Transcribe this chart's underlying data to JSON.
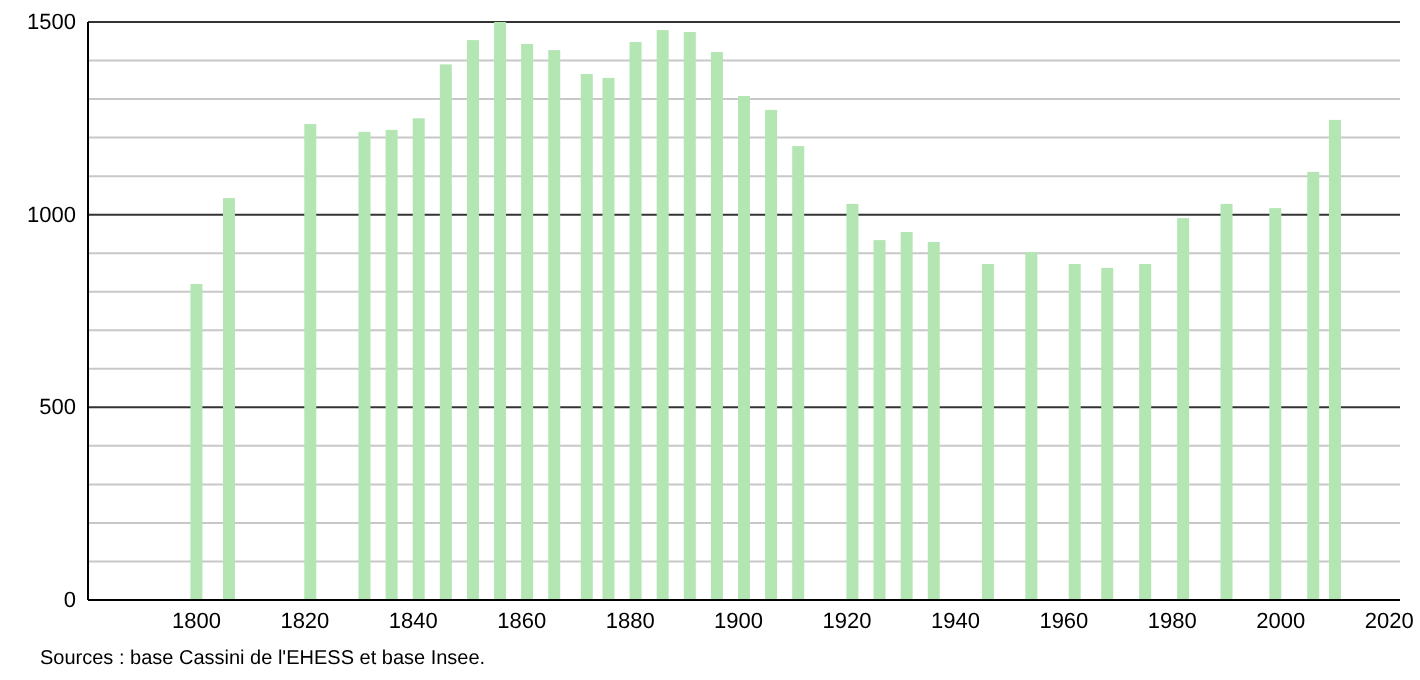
{
  "chart_data": {
    "type": "bar",
    "x": [
      1800,
      1806,
      1821,
      1831,
      1836,
      1841,
      1846,
      1851,
      1856,
      1861,
      1866,
      1872,
      1876,
      1881,
      1886,
      1891,
      1896,
      1901,
      1906,
      1911,
      1921,
      1926,
      1931,
      1936,
      1946,
      1954,
      1962,
      1968,
      1975,
      1982,
      1990,
      1999,
      2006,
      2010
    ],
    "values": [
      820,
      1043,
      1235,
      1215,
      1220,
      1250,
      1390,
      1453,
      1500,
      1443,
      1427,
      1365,
      1355,
      1448,
      1479,
      1474,
      1422,
      1308,
      1272,
      1178,
      1028,
      934,
      955,
      929,
      872,
      903,
      872,
      862,
      872,
      991,
      1028,
      1017,
      1111,
      1246
    ],
    "color": "#b3e6b3",
    "xlim": [
      1780,
      2022
    ],
    "xticks": [
      1800,
      1820,
      1840,
      1860,
      1880,
      1900,
      1920,
      1940,
      1960,
      1980,
      2000,
      2020
    ],
    "ylim": [
      0,
      1500
    ],
    "yticks": [
      0,
      {
        "value": 100,
        "label": null
      },
      {
        "value": 200,
        "label": null
      },
      {
        "value": 300,
        "label": null
      },
      {
        "value": 400,
        "label": null
      },
      500,
      {
        "value": 600,
        "label": null
      },
      {
        "value": 700,
        "label": null
      },
      {
        "value": 800,
        "label": null
      },
      {
        "value": 900,
        "label": null
      },
      1000,
      {
        "value": 1100,
        "label": null
      },
      {
        "value": 1200,
        "label": null
      },
      {
        "value": 1300,
        "label": null
      },
      {
        "value": 1400,
        "label": null
      },
      1500
    ],
    "grid": "y",
    "annotations": [
      "Sources : base Cassini de l'EHESS et base Insee."
    ]
  }
}
